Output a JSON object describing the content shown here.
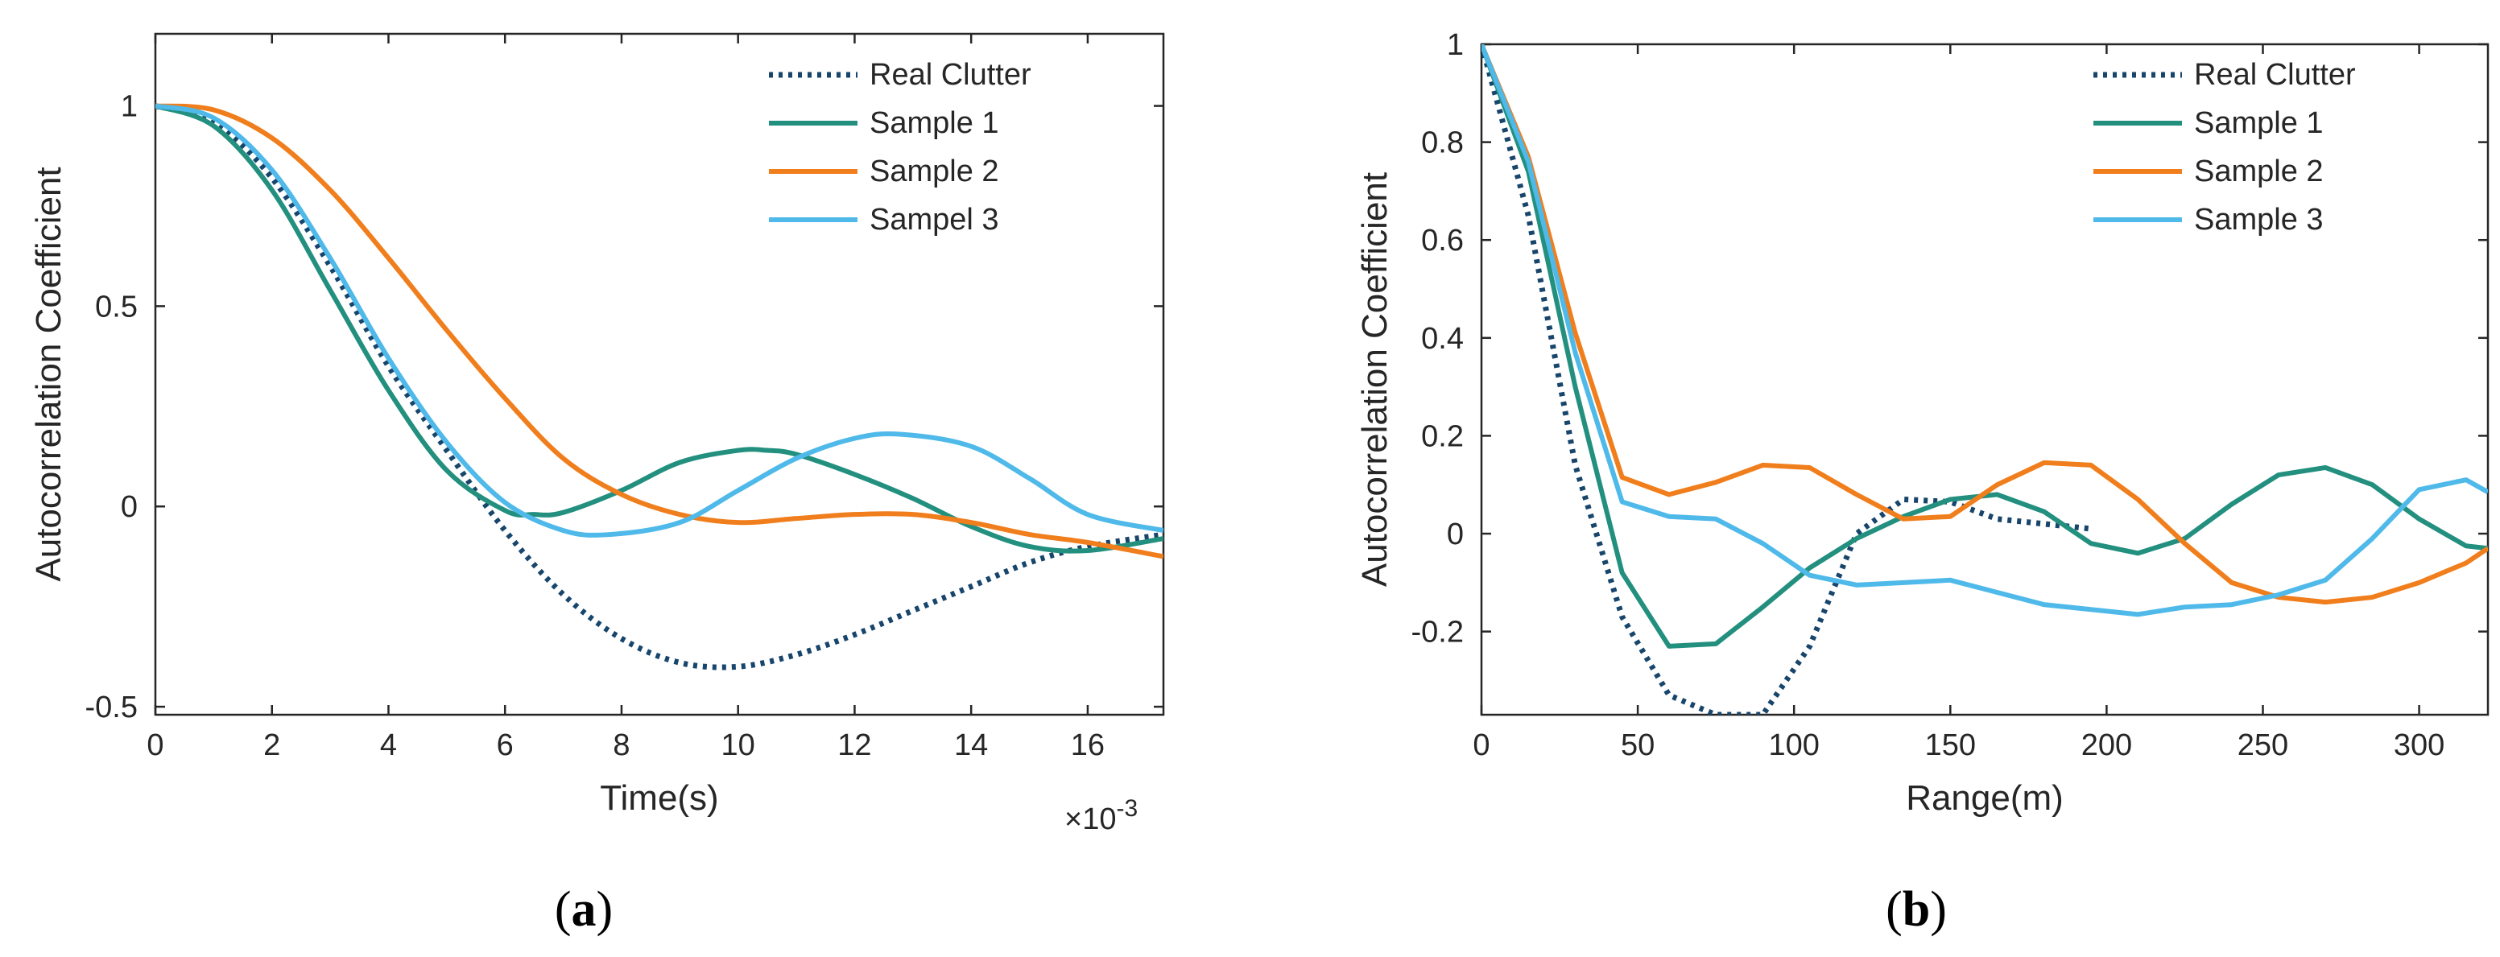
{
  "figure": {
    "panels": [
      {
        "label_open": "(",
        "label_letter": "a",
        "label_close": ")"
      },
      {
        "label_open": "(",
        "label_letter": "b",
        "label_close": ")"
      }
    ]
  },
  "chart_data": [
    {
      "type": "line",
      "title": "",
      "xlabel": "Time(s)",
      "ylabel": "Autocorrelation Coefficient",
      "xlim": [
        0,
        17.3
      ],
      "ylim": [
        -0.52,
        1.18
      ],
      "x_exponent_label": "×10",
      "x_exponent_power": "-3",
      "xticks": [
        0,
        2,
        4,
        6,
        8,
        10,
        12,
        14,
        16
      ],
      "xtick_labels": [
        "0",
        "2",
        "4",
        "6",
        "8",
        "10",
        "12",
        "14",
        "16"
      ],
      "yticks": [
        -0.5,
        0,
        0.5,
        1
      ],
      "ytick_labels": [
        "-0.5",
        "0",
        "0.5",
        "1"
      ],
      "legend_position": "top-right",
      "series": [
        {
          "name": "Real Clutter",
          "style": "dotted",
          "color": "#17456b",
          "x": [
            0,
            1,
            2,
            3,
            4,
            5,
            6,
            7,
            8,
            9,
            10,
            11,
            12,
            13,
            14,
            15,
            16,
            17.3
          ],
          "y": [
            1.0,
            0.96,
            0.82,
            0.6,
            0.35,
            0.14,
            -0.06,
            -0.22,
            -0.33,
            -0.39,
            -0.4,
            -0.37,
            -0.32,
            -0.26,
            -0.2,
            -0.14,
            -0.1,
            -0.07
          ]
        },
        {
          "name": "Sample 1",
          "style": "solid",
          "color": "#23907f",
          "x": [
            0,
            1,
            2,
            3,
            4,
            5,
            6,
            6.5,
            7,
            8,
            9,
            10,
            10.5,
            11,
            12,
            13,
            14,
            15,
            16,
            17.3
          ],
          "y": [
            1.0,
            0.95,
            0.79,
            0.54,
            0.29,
            0.09,
            -0.01,
            -0.02,
            -0.015,
            0.04,
            0.11,
            0.14,
            0.14,
            0.13,
            0.08,
            0.02,
            -0.05,
            -0.1,
            -0.11,
            -0.08
          ]
        },
        {
          "name": "Sample 2",
          "style": "solid",
          "color": "#f07e1c",
          "x": [
            0,
            1,
            2,
            3,
            4,
            5,
            6,
            7,
            8,
            9,
            10,
            11,
            12,
            13,
            14,
            15,
            16,
            17.3
          ],
          "y": [
            1.0,
            0.99,
            0.92,
            0.79,
            0.62,
            0.44,
            0.27,
            0.12,
            0.03,
            -0.02,
            -0.04,
            -0.03,
            -0.02,
            -0.02,
            -0.04,
            -0.07,
            -0.09,
            -0.125
          ]
        },
        {
          "name": "Sampel 3",
          "style": "solid",
          "color": "#4fb9ea",
          "x": [
            0,
            1,
            2,
            3,
            4,
            5,
            6,
            7,
            7.8,
            9,
            10,
            11,
            12,
            12.8,
            14,
            15,
            16,
            17.3
          ],
          "y": [
            1.0,
            0.97,
            0.84,
            0.62,
            0.37,
            0.16,
            0.01,
            -0.06,
            -0.07,
            -0.04,
            0.04,
            0.12,
            0.17,
            0.18,
            0.15,
            0.07,
            -0.02,
            -0.06
          ]
        }
      ]
    },
    {
      "type": "line",
      "title": "",
      "xlabel": "Range(m)",
      "ylabel": "Autocorrelation Coefficient",
      "xlim": [
        0,
        322
      ],
      "ylim": [
        -0.37,
        1.0
      ],
      "xticks": [
        0,
        50,
        100,
        150,
        200,
        250,
        300
      ],
      "xtick_labels": [
        "0",
        "50",
        "100",
        "150",
        "200",
        "250",
        "300"
      ],
      "yticks": [
        -0.2,
        0,
        0.2,
        0.4,
        0.6,
        0.8,
        1
      ],
      "ytick_labels": [
        "-0.2",
        "0",
        "0.2",
        "0.4",
        "0.6",
        "0.8",
        "1"
      ],
      "legend_position": "top-right",
      "series": [
        {
          "name": "Real Clutter",
          "style": "dotted",
          "color": "#17456b",
          "x": [
            0,
            15,
            30,
            45,
            60,
            75,
            90,
            105,
            120,
            135,
            150,
            165,
            180,
            195
          ],
          "y": [
            1.0,
            0.65,
            0.14,
            -0.17,
            -0.33,
            -0.37,
            -0.37,
            -0.23,
            0.0,
            0.07,
            0.065,
            0.03,
            0.02,
            0.01
          ]
        },
        {
          "name": "Sample 1",
          "style": "solid",
          "color": "#23907f",
          "x": [
            0,
            15,
            30,
            45,
            60,
            75,
            90,
            105,
            120,
            135,
            150,
            165,
            180,
            195,
            210,
            225,
            240,
            255,
            270,
            285,
            300,
            315,
            322
          ],
          "y": [
            1.0,
            0.74,
            0.3,
            -0.08,
            -0.23,
            -0.225,
            -0.15,
            -0.07,
            -0.01,
            0.035,
            0.07,
            0.08,
            0.045,
            -0.02,
            -0.04,
            -0.01,
            0.06,
            0.12,
            0.135,
            0.1,
            0.03,
            -0.025,
            -0.03
          ]
        },
        {
          "name": "Sample 2",
          "style": "solid",
          "color": "#f07e1c",
          "x": [
            0,
            15,
            30,
            45,
            60,
            75,
            90,
            105,
            120,
            135,
            150,
            165,
            180,
            195,
            210,
            225,
            240,
            255,
            270,
            285,
            300,
            315,
            322
          ],
          "y": [
            1.0,
            0.77,
            0.41,
            0.115,
            0.08,
            0.105,
            0.14,
            0.135,
            0.08,
            0.03,
            0.035,
            0.1,
            0.145,
            0.14,
            0.07,
            -0.02,
            -0.1,
            -0.13,
            -0.14,
            -0.13,
            -0.1,
            -0.06,
            -0.03
          ]
        },
        {
          "name": "Sample 3",
          "style": "solid",
          "color": "#4fb9ea",
          "x": [
            0,
            15,
            30,
            45,
            60,
            75,
            90,
            105,
            120,
            135,
            150,
            165,
            180,
            195,
            210,
            225,
            240,
            255,
            270,
            285,
            300,
            315,
            322
          ],
          "y": [
            1.0,
            0.76,
            0.37,
            0.065,
            0.035,
            0.03,
            -0.02,
            -0.085,
            -0.105,
            -0.1,
            -0.095,
            -0.12,
            -0.145,
            -0.155,
            -0.165,
            -0.15,
            -0.145,
            -0.125,
            -0.095,
            -0.01,
            0.09,
            0.11,
            0.085
          ]
        }
      ]
    }
  ]
}
